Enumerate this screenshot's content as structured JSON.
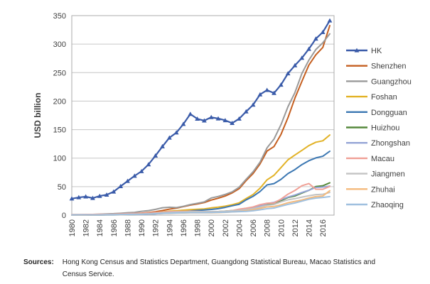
{
  "sources": {
    "label": "Sources:",
    "text": "Hong Kong Census and Statistics Department, Guangdong Statistical Bureau, Macao Statistics and Census Service."
  },
  "chart_data": {
    "type": "line",
    "title": "",
    "xlabel": "",
    "ylabel": "USD billion",
    "ylim": [
      0,
      350
    ],
    "ytick_interval": 50,
    "xtick_step": 2,
    "last_xtick_label": 2016,
    "grid": "horizontal",
    "legend_position": "right",
    "axis_color": "#ababab",
    "grid_color": "#c6c6c6",
    "x": [
      1980,
      1981,
      1982,
      1983,
      1984,
      1985,
      1986,
      1987,
      1988,
      1989,
      1990,
      1991,
      1992,
      1993,
      1994,
      1995,
      1996,
      1997,
      1998,
      1999,
      2000,
      2001,
      2002,
      2003,
      2004,
      2005,
      2006,
      2007,
      2008,
      2009,
      2010,
      2011,
      2012,
      2013,
      2014,
      2015,
      2016,
      2017
    ],
    "xtick_labels": [
      "1980",
      "1982",
      "1984",
      "1986",
      "1988",
      "1990",
      "1992",
      "1994",
      "1996",
      "1998",
      "2000",
      "2002",
      "2004",
      "2006",
      "2008",
      "2010",
      "2012",
      "2014",
      "2016"
    ],
    "series": [
      {
        "name": "HK",
        "color": "#3a5ba9",
        "marker": "triangle",
        "line_width": 2.2,
        "values": [
          28.9,
          31.1,
          32.5,
          29.9,
          33.5,
          35.7,
          41.1,
          50.6,
          59.7,
          68.8,
          76.9,
          88.9,
          104.3,
          120.4,
          135.8,
          144.7,
          159.7,
          177.3,
          168.9,
          165.8,
          171.7,
          169.4,
          166.3,
          161.4,
          169.1,
          181.6,
          193.5,
          211.6,
          219.3,
          214.0,
          228.6,
          248.5,
          262.6,
          275.7,
          291.5,
          309.4,
          320.9,
          341.3
        ]
      },
      {
        "name": "Shenzhen",
        "color": "#c55f20",
        "marker": "none",
        "line_width": 2,
        "values": [
          0.1,
          0.2,
          0.4,
          0.6,
          0.9,
          1.3,
          1.6,
          2.1,
          2.7,
          3.2,
          3.6,
          4.5,
          6.0,
          8.1,
          10.5,
          12.3,
          14.9,
          17.5,
          19.6,
          22.1,
          26.4,
          29.7,
          33.6,
          39.0,
          46.3,
          60.6,
          73.0,
          89.9,
          112.4,
          120.3,
          141.6,
          170.9,
          205.3,
          234.6,
          263.2,
          281.2,
          294.2,
          332.5
        ]
      },
      {
        "name": "Guangzhou",
        "color": "#9a9a9a",
        "marker": "none",
        "line_width": 2,
        "values": [
          0.9,
          1.0,
          1.1,
          1.3,
          1.7,
          2.2,
          2.6,
          3.3,
          4.2,
          4.9,
          6.7,
          8.0,
          10.1,
          12.9,
          13.9,
          13.2,
          15.5,
          18.5,
          20.8,
          23.2,
          30.1,
          32.7,
          36.3,
          40.9,
          49.0,
          62.9,
          76.0,
          93.0,
          118.0,
          133.5,
          158.7,
          190.1,
          215.0,
          248.6,
          271.9,
          290.5,
          302.3,
          318.1
        ]
      },
      {
        "name": "Foshan",
        "color": "#e2b226",
        "marker": "none",
        "line_width": 2,
        "values": [
          0.3,
          0.4,
          0.5,
          0.6,
          0.7,
          0.9,
          1.1,
          1.5,
          2.0,
          2.3,
          2.7,
          3.3,
          4.3,
          5.8,
          7.0,
          7.8,
          8.7,
          9.6,
          10.2,
          10.9,
          12.7,
          14.0,
          15.7,
          18.2,
          21.5,
          29.1,
          36.2,
          47.3,
          61.9,
          69.9,
          83.4,
          97.0,
          105.5,
          113.6,
          122.0,
          127.9,
          130.4,
          140.6
        ]
      },
      {
        "name": "Dongguan",
        "color": "#3b77b2",
        "marker": "none",
        "line_width": 2,
        "values": [
          0.2,
          0.3,
          0.3,
          0.4,
          0.5,
          0.6,
          0.8,
          1.0,
          1.3,
          1.6,
          1.9,
          2.4,
          3.1,
          3.9,
          4.6,
          5.4,
          6.3,
          7.3,
          8.2,
          9.0,
          9.9,
          11.4,
          13.6,
          16.4,
          19.0,
          26.7,
          33.0,
          41.5,
          53.0,
          55.3,
          62.7,
          72.9,
          79.9,
          88.6,
          95.5,
          100.4,
          103.3,
          112.1
        ]
      },
      {
        "name": "Huizhou",
        "color": "#55883b",
        "marker": "none",
        "line_width": 2,
        "values": [
          0.1,
          0.2,
          0.2,
          0.3,
          0.3,
          0.4,
          0.5,
          0.7,
          0.9,
          1.1,
          1.4,
          1.8,
          2.4,
          3.2,
          3.8,
          4.3,
          4.7,
          5.0,
          5.3,
          5.6,
          5.8,
          6.3,
          7.0,
          7.9,
          8.9,
          9.8,
          11.7,
          14.6,
          18.8,
          20.6,
          25.5,
          30.9,
          33.6,
          38.6,
          43.5,
          50.2,
          51.5,
          56.7
        ]
      },
      {
        "name": "Zhongshan",
        "color": "#95a5d6",
        "marker": "none",
        "line_width": 2,
        "values": [
          0.1,
          0.2,
          0.2,
          0.3,
          0.3,
          0.4,
          0.5,
          0.7,
          0.9,
          1.1,
          1.3,
          1.7,
          2.2,
          2.9,
          3.4,
          3.9,
          4.3,
          4.6,
          4.8,
          4.9,
          4.9,
          5.5,
          6.3,
          7.4,
          8.7,
          10.7,
          12.9,
          16.2,
          20.4,
          22.3,
          27.2,
          31.7,
          35.3,
          39.7,
          43.6,
          48.5,
          49.2,
          51.0
        ]
      },
      {
        "name": "Macau",
        "color": "#f0a096",
        "marker": "none",
        "line_width": 2,
        "values": [
          0.9,
          1.0,
          1.1,
          1.2,
          1.4,
          1.4,
          1.6,
          2.1,
          2.6,
          3.0,
          3.2,
          3.8,
          4.7,
          5.5,
          6.3,
          6.6,
          6.7,
          6.8,
          6.5,
          6.2,
          6.1,
          6.2,
          6.8,
          7.9,
          10.4,
          12.1,
          14.4,
          18.4,
          20.9,
          21.3,
          28.1,
          36.8,
          43.3,
          51.6,
          55.4,
          45.4,
          45.3,
          50.4
        ]
      },
      {
        "name": "Jiangmen",
        "color": "#c3c3c3",
        "marker": "none",
        "line_width": 2,
        "values": [
          0.4,
          0.5,
          0.5,
          0.6,
          0.7,
          0.9,
          1.0,
          1.3,
          1.7,
          1.9,
          2.2,
          2.7,
          3.4,
          4.3,
          4.9,
          5.4,
          5.8,
          6.0,
          6.1,
          6.1,
          6.0,
          6.3,
          6.9,
          7.7,
          8.6,
          9.8,
          11.5,
          14.2,
          17.3,
          18.6,
          23.3,
          26.9,
          28.9,
          31.6,
          33.9,
          36.0,
          36.6,
          39.8
        ]
      },
      {
        "name": "Zhuhai",
        "color": "#f4ba7c",
        "marker": "none",
        "line_width": 2,
        "values": [
          0.1,
          0.2,
          0.2,
          0.3,
          0.4,
          0.5,
          0.6,
          0.8,
          1.1,
          1.4,
          1.7,
          2.1,
          2.6,
          3.0,
          3.3,
          3.6,
          3.8,
          4.0,
          4.1,
          4.0,
          4.0,
          4.4,
          4.9,
          5.6,
          6.4,
          7.7,
          9.4,
          11.8,
          14.4,
          15.2,
          18.0,
          21.7,
          24.1,
          26.5,
          29.9,
          32.5,
          33.5,
          42.9
        ]
      },
      {
        "name": "Zhaoqing",
        "color": "#9fc0df",
        "marker": "none",
        "line_width": 2,
        "values": [
          0.3,
          0.4,
          0.4,
          0.5,
          0.5,
          0.6,
          0.7,
          0.9,
          1.2,
          1.4,
          1.6,
          2.0,
          2.5,
          3.1,
          3.5,
          3.8,
          4.1,
          4.3,
          4.4,
          4.4,
          4.5,
          4.8,
          5.2,
          5.7,
          6.1,
          6.5,
          7.6,
          9.3,
          11.3,
          12.4,
          15.7,
          18.8,
          21.3,
          24.5,
          27.8,
          29.9,
          31.0,
          32.5
        ]
      }
    ]
  }
}
